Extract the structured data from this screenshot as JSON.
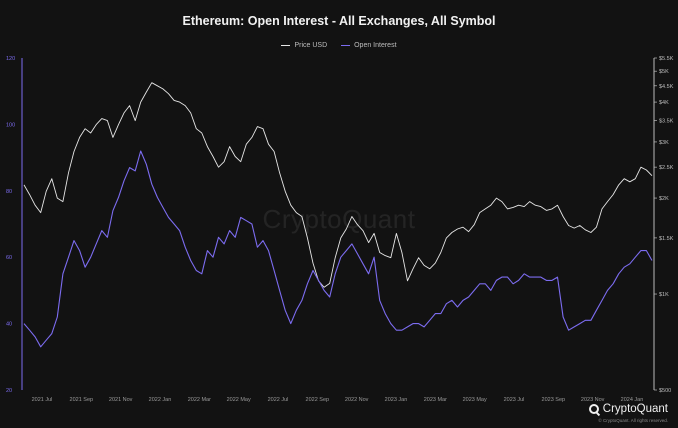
{
  "chart_data": {
    "type": "line",
    "title": "Ethereum: Open Interest - All Exchanges, All Symbol",
    "legend": {
      "placement": "top-center",
      "items": [
        {
          "name": "Price USD",
          "color": "#e6e6e6"
        },
        {
          "name": "Open Interest",
          "color": "#7c6cf0"
        }
      ]
    },
    "grid": false,
    "x_ticks": [
      "2021 Jul",
      "2021 Sep",
      "2021 Nov",
      "2022 Jan",
      "2022 Mar",
      "2022 May",
      "2022 Jul",
      "2022 Sep",
      "2022 Nov",
      "2023 Jan",
      "2023 Mar",
      "2023 May",
      "2023 Jul",
      "2023 Sep",
      "2023 Nov",
      "2024 Jan"
    ],
    "y_left": {
      "ticks": [
        "20",
        "40",
        "60",
        "80",
        "100",
        "120"
      ],
      "color": "#7c6cf0",
      "ylim": [
        20,
        120
      ],
      "unit": "number (abbrev. as printed)"
    },
    "y_right": {
      "ticks": [
        "$500",
        "$1K",
        "$1.5K",
        "$2K",
        "$2.5K",
        "$3K",
        "$3.5K",
        "$4K",
        "$4.5K",
        "$5K",
        "$5.5K"
      ],
      "scale": "log",
      "ylim": [
        500,
        5500
      ]
    },
    "series": [
      {
        "name": "Price USD",
        "axis": "right",
        "color": "#e6e6e6",
        "values": [
          2200,
          2050,
          1900,
          1800,
          2100,
          2300,
          2000,
          1950,
          2400,
          2800,
          3100,
          3300,
          3200,
          3400,
          3550,
          3500,
          3100,
          3400,
          3700,
          3900,
          3500,
          4000,
          4300,
          4600,
          4500,
          4400,
          4250,
          4050,
          4000,
          3900,
          3700,
          3300,
          3200,
          2900,
          2700,
          2500,
          2600,
          2900,
          2700,
          2600,
          2950,
          3100,
          3350,
          3300,
          2950,
          2800,
          2400,
          2100,
          1900,
          1800,
          1750,
          1500,
          1250,
          1100,
          1050,
          1080,
          1300,
          1500,
          1600,
          1750,
          1650,
          1580,
          1450,
          1550,
          1350,
          1320,
          1300,
          1550,
          1350,
          1100,
          1200,
          1300,
          1230,
          1200,
          1250,
          1350,
          1500,
          1560,
          1600,
          1620,
          1570,
          1650,
          1800,
          1850,
          1900,
          2000,
          1950,
          1850,
          1870,
          1900,
          1880,
          1950,
          1900,
          1880,
          1830,
          1850,
          1900,
          1750,
          1640,
          1610,
          1640,
          1590,
          1560,
          1620,
          1850,
          1950,
          2050,
          2200,
          2300,
          2250,
          2300,
          2500,
          2450,
          2350
        ]
      },
      {
        "name": "Open Interest",
        "axis": "left",
        "color": "#7c6cf0",
        "values": [
          40,
          38,
          36,
          33,
          35,
          37,
          42,
          55,
          60,
          65,
          62,
          57,
          60,
          64,
          68,
          66,
          74,
          78,
          83,
          87,
          86,
          92,
          88,
          82,
          78,
          75,
          72,
          70,
          68,
          63,
          59,
          56,
          55,
          62,
          60,
          66,
          64,
          68,
          66,
          72,
          71,
          70,
          63,
          65,
          62,
          56,
          50,
          44,
          40,
          44,
          47,
          52,
          56,
          53,
          50,
          48,
          55,
          60,
          62,
          64,
          61,
          58,
          55,
          60,
          47,
          43,
          40,
          38,
          38,
          39,
          40,
          40,
          39,
          41,
          43,
          43,
          46,
          47,
          45,
          47,
          48,
          50,
          52,
          52,
          50,
          53,
          54,
          54,
          52,
          53,
          55,
          54,
          54,
          54,
          53,
          53,
          54,
          42,
          38,
          39,
          40,
          41,
          41,
          44,
          47,
          50,
          52,
          55,
          57,
          58,
          60,
          62,
          62,
          59
        ]
      }
    ]
  },
  "watermark": "CryptoQuant",
  "branding": {
    "name": "CryptoQuant",
    "icon": "cryptoquant-logo-icon",
    "copyright": "© CryptoQuant. All rights reserved."
  }
}
